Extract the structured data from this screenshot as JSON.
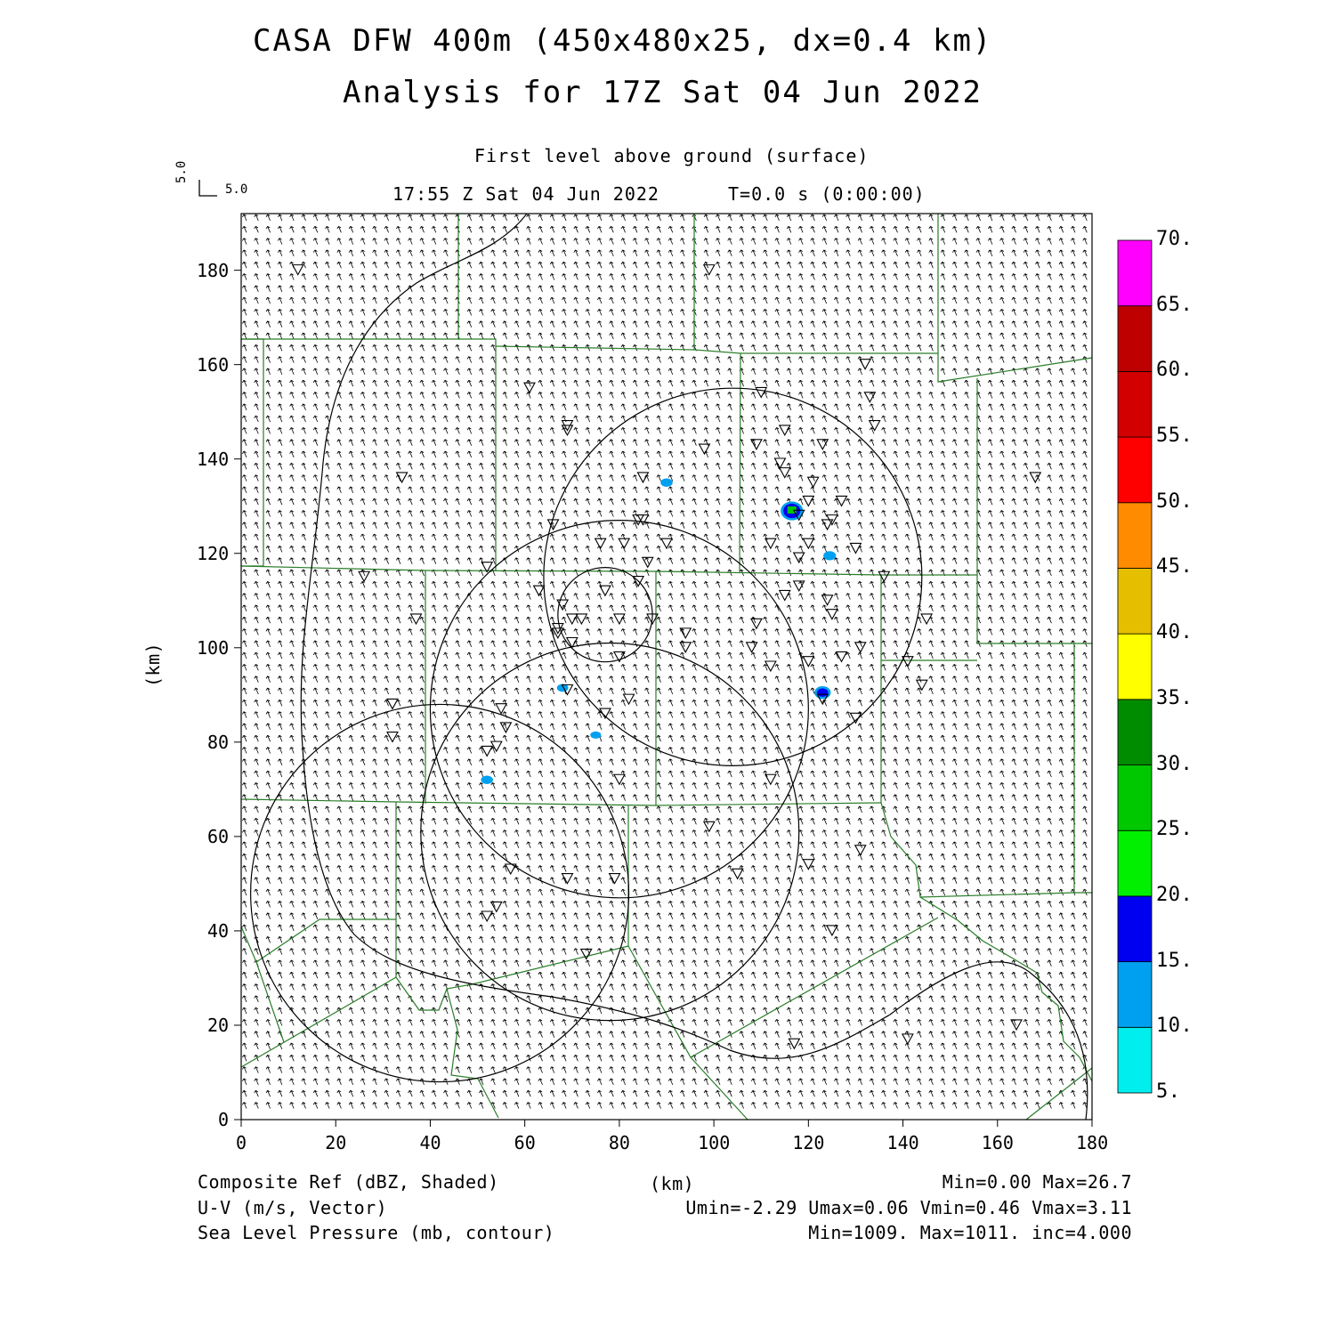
{
  "header": {
    "title_line1": "CASA DFW 400m (450x480x25, dx=0.4 km)",
    "title_line2": "Analysis for 17Z Sat 04 Jun 2022",
    "level": "First level above ground (surface)",
    "valid_time": "17:55 Z Sat 04 Jun 2022",
    "forecast_time": "T=0.0 s (0:00:00)",
    "vector_key_u": "5.0",
    "vector_key_v": "5.0"
  },
  "axes": {
    "x_label": "(km)",
    "y_label": "(km)",
    "x_ticks": [
      "0",
      "20",
      "40",
      "60",
      "80",
      "100",
      "120",
      "140",
      "160",
      "180"
    ],
    "y_ticks": [
      "0",
      "20",
      "40",
      "60",
      "80",
      "100",
      "120",
      "140",
      "160",
      "180"
    ],
    "xlim": [
      0,
      180
    ],
    "ylim": [
      0,
      192
    ]
  },
  "colorbar": {
    "labels": [
      "5.",
      "10.",
      "15.",
      "20.",
      "25.",
      "30.",
      "35.",
      "40.",
      "45.",
      "50.",
      "55.",
      "60.",
      "65.",
      "70."
    ],
    "colors": [
      "#00eeee",
      "#00a0f0",
      "#0000f0",
      "#00f000",
      "#00c800",
      "#008c00",
      "#ffff00",
      "#e6be00",
      "#ff8c00",
      "#ff0000",
      "#d20000",
      "#be0000",
      "#ff00ff"
    ]
  },
  "footer": {
    "field1_name": "Composite Ref (dBZ, Shaded)",
    "field1_stats": "Min=0.00 Max=26.7",
    "field2_name": "U-V (m/s, Vector)",
    "field2_stats": "Umin=-2.29 Umax=0.06 Vmin=0.46 Vmax=3.11",
    "field3_name": "Sea Level Pressure (mb, contour)",
    "field3_stats": "Min=1009. Max=1011. inc=4.000",
    "x_unit": "(km)"
  },
  "chart_data": {
    "type": "map",
    "radar_echoes_dbz": [
      {
        "x": 116.5,
        "y": 129,
        "dbz": 26.7
      },
      {
        "x": 123,
        "y": 90.5,
        "dbz": 17
      },
      {
        "x": 124.5,
        "y": 119.5,
        "dbz": 11
      },
      {
        "x": 90,
        "y": 135,
        "dbz": 10
      },
      {
        "x": 68,
        "y": 91.5,
        "dbz": 9
      },
      {
        "x": 75,
        "y": 81.5,
        "dbz": 8
      },
      {
        "x": 52,
        "y": 72,
        "dbz": 10
      }
    ],
    "range_rings_km": [
      {
        "cx": 104,
        "cy": 115,
        "r": 40
      },
      {
        "cx": 80,
        "cy": 87,
        "r": 40
      },
      {
        "cx": 42,
        "cy": 48,
        "r": 40
      },
      {
        "cx": 78,
        "cy": 61,
        "r": 40
      },
      {
        "cx": 77,
        "cy": 107,
        "r": 10
      }
    ],
    "stations_km": [
      [
        12,
        180
      ],
      [
        99,
        180
      ],
      [
        61,
        155
      ],
      [
        69,
        146
      ],
      [
        69,
        147
      ],
      [
        34,
        136
      ],
      [
        37,
        106
      ],
      [
        26,
        115
      ],
      [
        32,
        88
      ],
      [
        32,
        81
      ],
      [
        52,
        117
      ],
      [
        66,
        126
      ],
      [
        85,
        136
      ],
      [
        84,
        127
      ],
      [
        85,
        127
      ],
      [
        76,
        122
      ],
      [
        81,
        122
      ],
      [
        86,
        118
      ],
      [
        84,
        114
      ],
      [
        90,
        122
      ],
      [
        77,
        112
      ],
      [
        87,
        106
      ],
      [
        63,
        112
      ],
      [
        68,
        109
      ],
      [
        67,
        104
      ],
      [
        67,
        103
      ],
      [
        70,
        106
      ],
      [
        72,
        106
      ],
      [
        70,
        101
      ],
      [
        80,
        106
      ],
      [
        80,
        98
      ],
      [
        82,
        89
      ],
      [
        77,
        86
      ],
      [
        69,
        91
      ],
      [
        55,
        87
      ],
      [
        56,
        83
      ],
      [
        54,
        79
      ],
      [
        52,
        78
      ],
      [
        52,
        43
      ],
      [
        54,
        45
      ],
      [
        57,
        53
      ],
      [
        69,
        51
      ],
      [
        79,
        51
      ],
      [
        73,
        35
      ],
      [
        80,
        72
      ],
      [
        99,
        62
      ],
      [
        98,
        142
      ],
      [
        94,
        103
      ],
      [
        94,
        100
      ],
      [
        110,
        154
      ],
      [
        109,
        143
      ],
      [
        114,
        139
      ],
      [
        115,
        137
      ],
      [
        115,
        146
      ],
      [
        123,
        143
      ],
      [
        121,
        135
      ],
      [
        120,
        131
      ],
      [
        118,
        128
      ],
      [
        124,
        126
      ],
      [
        125,
        127
      ],
      [
        118,
        119
      ],
      [
        120,
        122
      ],
      [
        112,
        122
      ],
      [
        115,
        111
      ],
      [
        118,
        113
      ],
      [
        124,
        110
      ],
      [
        125,
        107
      ],
      [
        127,
        131
      ],
      [
        130,
        121
      ],
      [
        132,
        160
      ],
      [
        133,
        153
      ],
      [
        134,
        147
      ],
      [
        136,
        115
      ],
      [
        109,
        105
      ],
      [
        108,
        100
      ],
      [
        112,
        96
      ],
      [
        120,
        97
      ],
      [
        127,
        98
      ],
      [
        131,
        100
      ],
      [
        123,
        89
      ],
      [
        130,
        85
      ],
      [
        145,
        106
      ],
      [
        141,
        97
      ],
      [
        144,
        92
      ],
      [
        131,
        57
      ],
      [
        120,
        54
      ],
      [
        105,
        52
      ],
      [
        112,
        72
      ],
      [
        125,
        40
      ],
      [
        117,
        16
      ],
      [
        141,
        17
      ],
      [
        164,
        20
      ],
      [
        168,
        136
      ]
    ]
  }
}
